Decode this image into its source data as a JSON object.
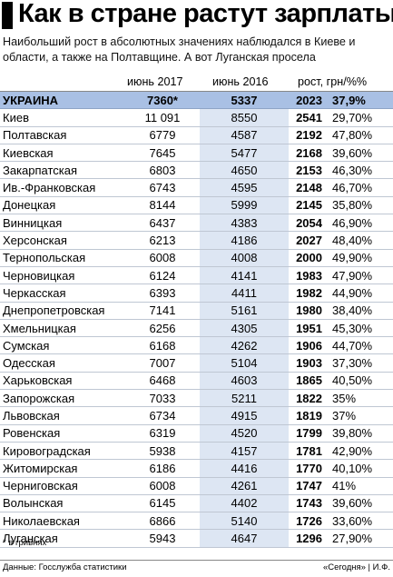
{
  "title": "Как в стране растут зарплаты",
  "subtitle": "Наибольший рост в абсолютных значениях наблюдался в Киеве и области, а также на Полтавщине. А вот Луганская просела",
  "chart_data": {
    "type": "table",
    "columns": [
      "",
      "июнь 2017",
      "июнь 2016",
      "рост, грн/%%"
    ],
    "rows": [
      {
        "region": "УКРАИНА",
        "jun2017": "7360*",
        "jun2016": "5337",
        "growth": "2023",
        "pct": "37,9%"
      },
      {
        "region": "Киев",
        "jun2017": "11 091",
        "jun2016": "8550",
        "growth": "2541",
        "pct": "29,70%"
      },
      {
        "region": "Полтавская",
        "jun2017": "6779",
        "jun2016": "4587",
        "growth": "2192",
        "pct": "47,80%"
      },
      {
        "region": "Киевская",
        "jun2017": "7645",
        "jun2016": "5477",
        "growth": "2168",
        "pct": "39,60%"
      },
      {
        "region": "Закарпатская",
        "jun2017": "6803",
        "jun2016": "4650",
        "growth": "2153",
        "pct": "46,30%"
      },
      {
        "region": "Ив.-Франковская",
        "jun2017": "6743",
        "jun2016": "4595",
        "growth": "2148",
        "pct": "46,70%"
      },
      {
        "region": "Донецкая",
        "jun2017": "8144",
        "jun2016": "5999",
        "growth": "2145",
        "pct": "35,80%"
      },
      {
        "region": "Винницкая",
        "jun2017": "6437",
        "jun2016": "4383",
        "growth": "2054",
        "pct": "46,90%"
      },
      {
        "region": "Херсонская",
        "jun2017": "6213",
        "jun2016": "4186",
        "growth": "2027",
        "pct": "48,40%"
      },
      {
        "region": "Тернопольская",
        "jun2017": "6008",
        "jun2016": "4008",
        "growth": "2000",
        "pct": "49,90%"
      },
      {
        "region": "Черновицкая",
        "jun2017": "6124",
        "jun2016": "4141",
        "growth": "1983",
        "pct": "47,90%"
      },
      {
        "region": "Черкасская",
        "jun2017": "6393",
        "jun2016": "4411",
        "growth": "1982",
        "pct": "44,90%"
      },
      {
        "region": "Днепропетровская",
        "jun2017": "7141",
        "jun2016": "5161",
        "growth": "1980",
        "pct": "38,40%"
      },
      {
        "region": "Хмельницкая",
        "jun2017": "6256",
        "jun2016": "4305",
        "growth": "1951",
        "pct": "45,30%"
      },
      {
        "region": "Сумская",
        "jun2017": "6168",
        "jun2016": "4262",
        "growth": "1906",
        "pct": "44,70%"
      },
      {
        "region": "Одесская",
        "jun2017": "7007",
        "jun2016": "5104",
        "growth": "1903",
        "pct": "37,30%"
      },
      {
        "region": "Харьковская",
        "jun2017": "6468",
        "jun2016": "4603",
        "growth": "1865",
        "pct": "40,50%"
      },
      {
        "region": "Запорожская",
        "jun2017": "7033",
        "jun2016": "5211",
        "growth": "1822",
        "pct": "35%"
      },
      {
        "region": "Львовская",
        "jun2017": "6734",
        "jun2016": "4915",
        "growth": "1819",
        "pct": "37%"
      },
      {
        "region": "Ровенская",
        "jun2017": "6319",
        "jun2016": "4520",
        "growth": "1799",
        "pct": "39,80%"
      },
      {
        "region": "Кировоградская",
        "jun2017": "5938",
        "jun2016": "4157",
        "growth": "1781",
        "pct": "42,90%"
      },
      {
        "region": "Житомирская",
        "jun2017": "6186",
        "jun2016": "4416",
        "growth": "1770",
        "pct": "40,10%"
      },
      {
        "region": "Черниговская",
        "jun2017": "6008",
        "jun2016": "4261",
        "growth": "1747",
        "pct": "41%"
      },
      {
        "region": "Волынская",
        "jun2017": "6145",
        "jun2016": "4402",
        "growth": "1743",
        "pct": "39,60%"
      },
      {
        "region": "Николаевская",
        "jun2017": "6866",
        "jun2016": "5140",
        "growth": "1726",
        "pct": "33,60%"
      },
      {
        "region": "Луганская",
        "jun2017": "5943",
        "jun2016": "4647",
        "growth": "1296",
        "pct": "27,90%"
      }
    ],
    "colors": {
      "header_row": "#a9c0e4",
      "shaded_column": "#dde6f3"
    }
  },
  "footnote": "* в гривнях",
  "source": "Данные: Госслужба статистики",
  "credit": "«Сегодня» | И.Ф."
}
